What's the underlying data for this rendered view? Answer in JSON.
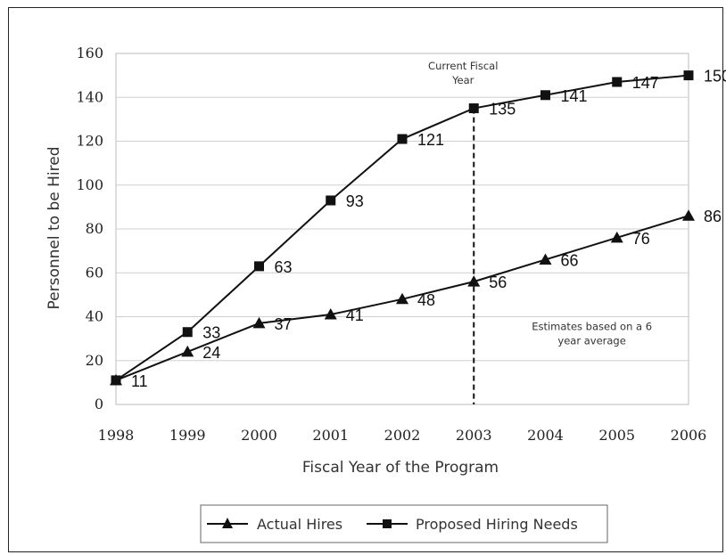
{
  "chart_data": {
    "type": "line",
    "xlabel": "Fiscal Year of the Program",
    "ylabel": "Personnel to be Hired",
    "categories": [
      "1998",
      "1999",
      "2000",
      "2001",
      "2002",
      "2003",
      "2004",
      "2005",
      "2006"
    ],
    "ylim": [
      0,
      160
    ],
    "yticks": [
      "0",
      "20",
      "40",
      "60",
      "80",
      "100",
      "120",
      "140",
      "160"
    ],
    "grid": "horizontal",
    "series": [
      {
        "name": "Actual Hires",
        "marker": "triangle",
        "values": [
          11,
          24,
          37,
          41,
          48,
          56,
          66,
          76,
          86
        ],
        "labels": [
          "",
          "24",
          "37",
          "41",
          "48",
          "56",
          "66",
          "76",
          "86"
        ]
      },
      {
        "name": "Proposed Hiring Needs",
        "marker": "square",
        "values": [
          11,
          33,
          63,
          93,
          121,
          135,
          141,
          147,
          150
        ],
        "labels": [
          "11",
          "33",
          "63",
          "93",
          "121",
          "135",
          "141",
          "147",
          "150"
        ]
      }
    ],
    "annotations": [
      {
        "text_lines": [
          "Current Fiscal",
          "Year"
        ],
        "at_year": "2003",
        "marker_line": "dashed-vertical"
      },
      {
        "text_lines": [
          "Estimates based on a 6",
          "year average"
        ],
        "region": "2003-2006"
      }
    ],
    "legend_position": "bottom-center",
    "color": "#111111"
  }
}
